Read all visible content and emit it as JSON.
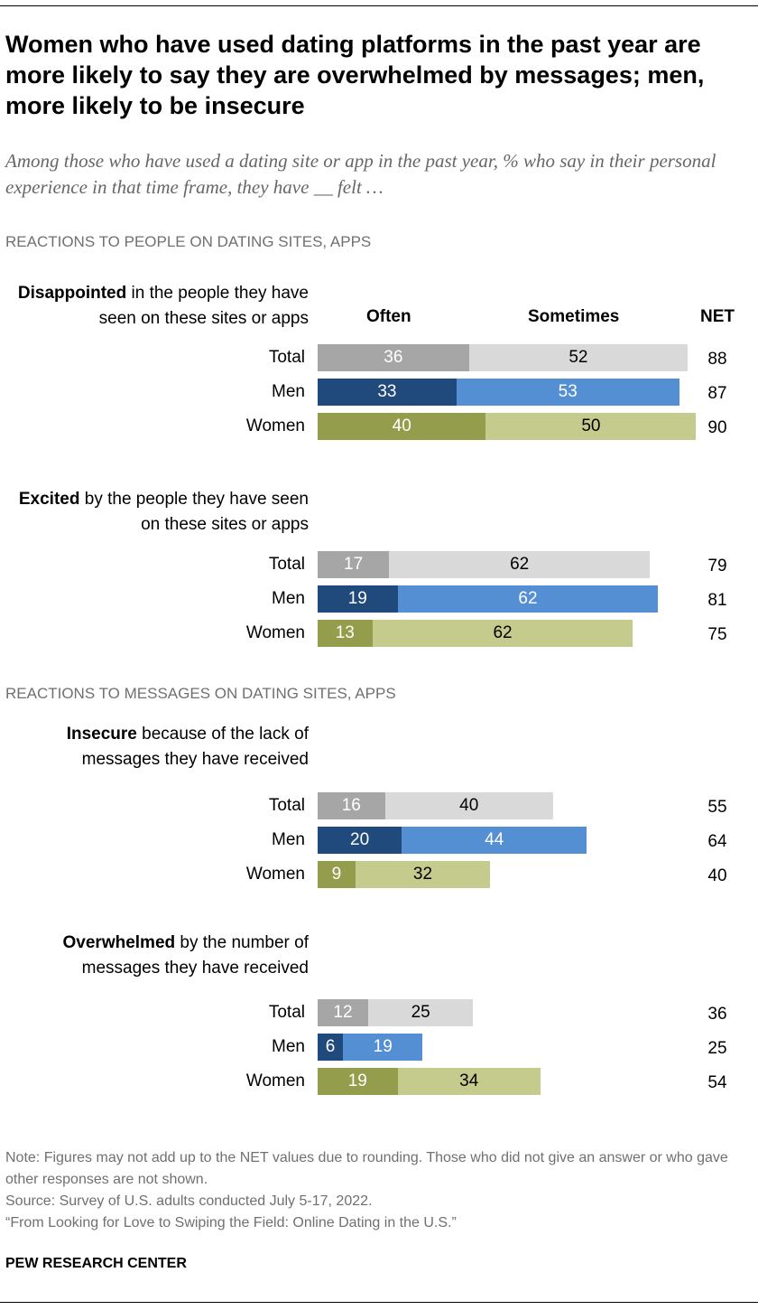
{
  "title": "Women who have used dating platforms in the past year are more likely to say they are overwhelmed by messages; men, more likely to be insecure",
  "subtitle": "Among those who have used a dating site or app in the past year, % who say in their personal experience in that time frame, they have __ felt …",
  "columns": {
    "often": "Often",
    "sometimes": "Sometimes",
    "net": "NET"
  },
  "colors": {
    "total_often": "#a6a6a6",
    "total_sometimes": "#d9d9d9",
    "men_often": "#20497c",
    "men_sometimes": "#548fd4",
    "women_often": "#949d4b",
    "women_sometimes": "#c4cb8d"
  },
  "chart_data": {
    "type": "bar",
    "stacked": true,
    "orientation": "horizontal",
    "series_names": [
      "Often",
      "Sometimes"
    ],
    "sections": [
      {
        "label": "REACTIONS TO PEOPLE ON DATING SITES, APPS",
        "items": [
          {
            "bold": "Disappointed",
            "rest": " in the people they have seen on these sites or apps",
            "rows": [
              {
                "group": "Total",
                "often": 36,
                "sometimes": 52,
                "net": 88
              },
              {
                "group": "Men",
                "often": 33,
                "sometimes": 53,
                "net": 87
              },
              {
                "group": "Women",
                "often": 40,
                "sometimes": 50,
                "net": 90
              }
            ]
          },
          {
            "bold": "Excited",
            "rest": " by the people they have seen on these sites or apps",
            "rows": [
              {
                "group": "Total",
                "often": 17,
                "sometimes": 62,
                "net": 79
              },
              {
                "group": "Men",
                "often": 19,
                "sometimes": 62,
                "net": 81
              },
              {
                "group": "Women",
                "often": 13,
                "sometimes": 62,
                "net": 75
              }
            ]
          }
        ]
      },
      {
        "label": "REACTIONS TO MESSAGES ON DATING SITES, APPS",
        "items": [
          {
            "bold": "Insecure",
            "rest": " because of the lack of messages they have received",
            "rows": [
              {
                "group": "Total",
                "often": 16,
                "sometimes": 40,
                "net": 55
              },
              {
                "group": "Men",
                "often": 20,
                "sometimes": 44,
                "net": 64
              },
              {
                "group": "Women",
                "often": 9,
                "sometimes": 32,
                "net": 40
              }
            ]
          },
          {
            "bold": "Overwhelmed",
            "rest": " by the number of messages they have received",
            "rows": [
              {
                "group": "Total",
                "often": 12,
                "sometimes": 25,
                "net": 36
              },
              {
                "group": "Men",
                "often": 6,
                "sometimes": 19,
                "net": 25
              },
              {
                "group": "Women",
                "often": 19,
                "sometimes": 34,
                "net": 54
              }
            ]
          }
        ]
      }
    ]
  },
  "notes": [
    "Note: Figures may not add up to the NET values due to rounding. Those who did not give an answer or who gave other responses are not shown.",
    "Source: Survey of U.S. adults conducted July 5-17, 2022.",
    "“From Looking for Love to Swiping the Field: Online Dating in the U.S.”"
  ],
  "brand": "PEW RESEARCH CENTER"
}
